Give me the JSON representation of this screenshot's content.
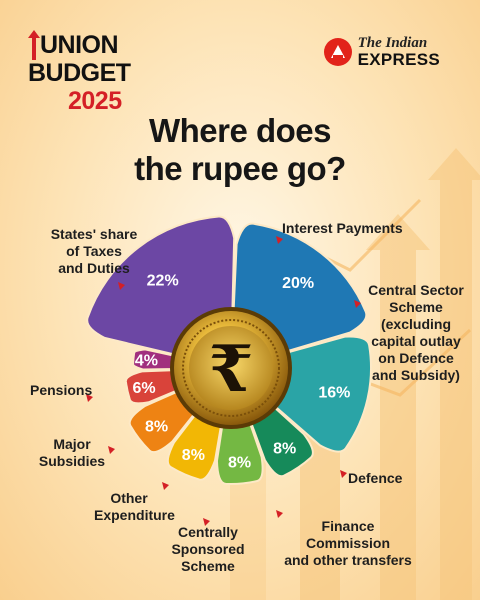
{
  "logo": {
    "line1": "UNION",
    "line2": "BUDGET",
    "year": "2025"
  },
  "publisher": {
    "line1": "The Indian",
    "line2": "EXPRESS"
  },
  "headline": {
    "line1": "Where does",
    "line2": "the rupee go?"
  },
  "center_icon": "rupee-coin-icon",
  "colors": {
    "accent_red": "#d42026",
    "background": "#fde3b5"
  },
  "chart_data": {
    "type": "pie",
    "title": "Where does the rupee go?",
    "unit": "%",
    "slices": [
      {
        "label": "Interest Payments",
        "value": 20,
        "value_label": "20%",
        "color": "#1f78b4"
      },
      {
        "label": "Central Sector Scheme (excluding capital outlay on Defence and Subsidy)",
        "value": 16,
        "value_label": "16%",
        "color": "#2aa4a6"
      },
      {
        "label": "Defence",
        "value": 8,
        "value_label": "8%",
        "color": "#168a5a"
      },
      {
        "label": "Finance Commission and other transfers",
        "value": 8,
        "value_label": "8%",
        "color": "#74b843"
      },
      {
        "label": "Centrally Sponsored Scheme",
        "value": 8,
        "value_label": "8%",
        "color": "#f2b705"
      },
      {
        "label": "Other Expenditure",
        "value": 8,
        "value_label": "8%",
        "color": "#ee8313"
      },
      {
        "label": "Major Subsidies",
        "value": 6,
        "value_label": "6%",
        "color": "#d9433a"
      },
      {
        "label": "Pensions",
        "value": 4,
        "value_label": "4%",
        "color": "#a12f7e"
      },
      {
        "label": "States' share of Taxes and Duties",
        "value": 22,
        "value_label": "22%",
        "color": "#6c47a4"
      }
    ],
    "labels": {
      "interest": "Interest Payments",
      "central_lines": [
        "Central Sector",
        "Scheme",
        "(excluding",
        "capital outlay",
        "on Defence",
        "and Subsidy)"
      ],
      "defence": "Defence",
      "finance_lines": [
        "Finance Commission",
        "and other transfers"
      ],
      "css_lines": [
        "Centrally",
        "Sponsored",
        "Scheme"
      ],
      "other_lines": [
        "Other",
        "Expenditure"
      ],
      "subsidies_lines": [
        "Major",
        "Subsidies"
      ],
      "pensions": "Pensions",
      "states_lines": [
        "States' share",
        "of Taxes",
        "and Duties"
      ]
    }
  }
}
